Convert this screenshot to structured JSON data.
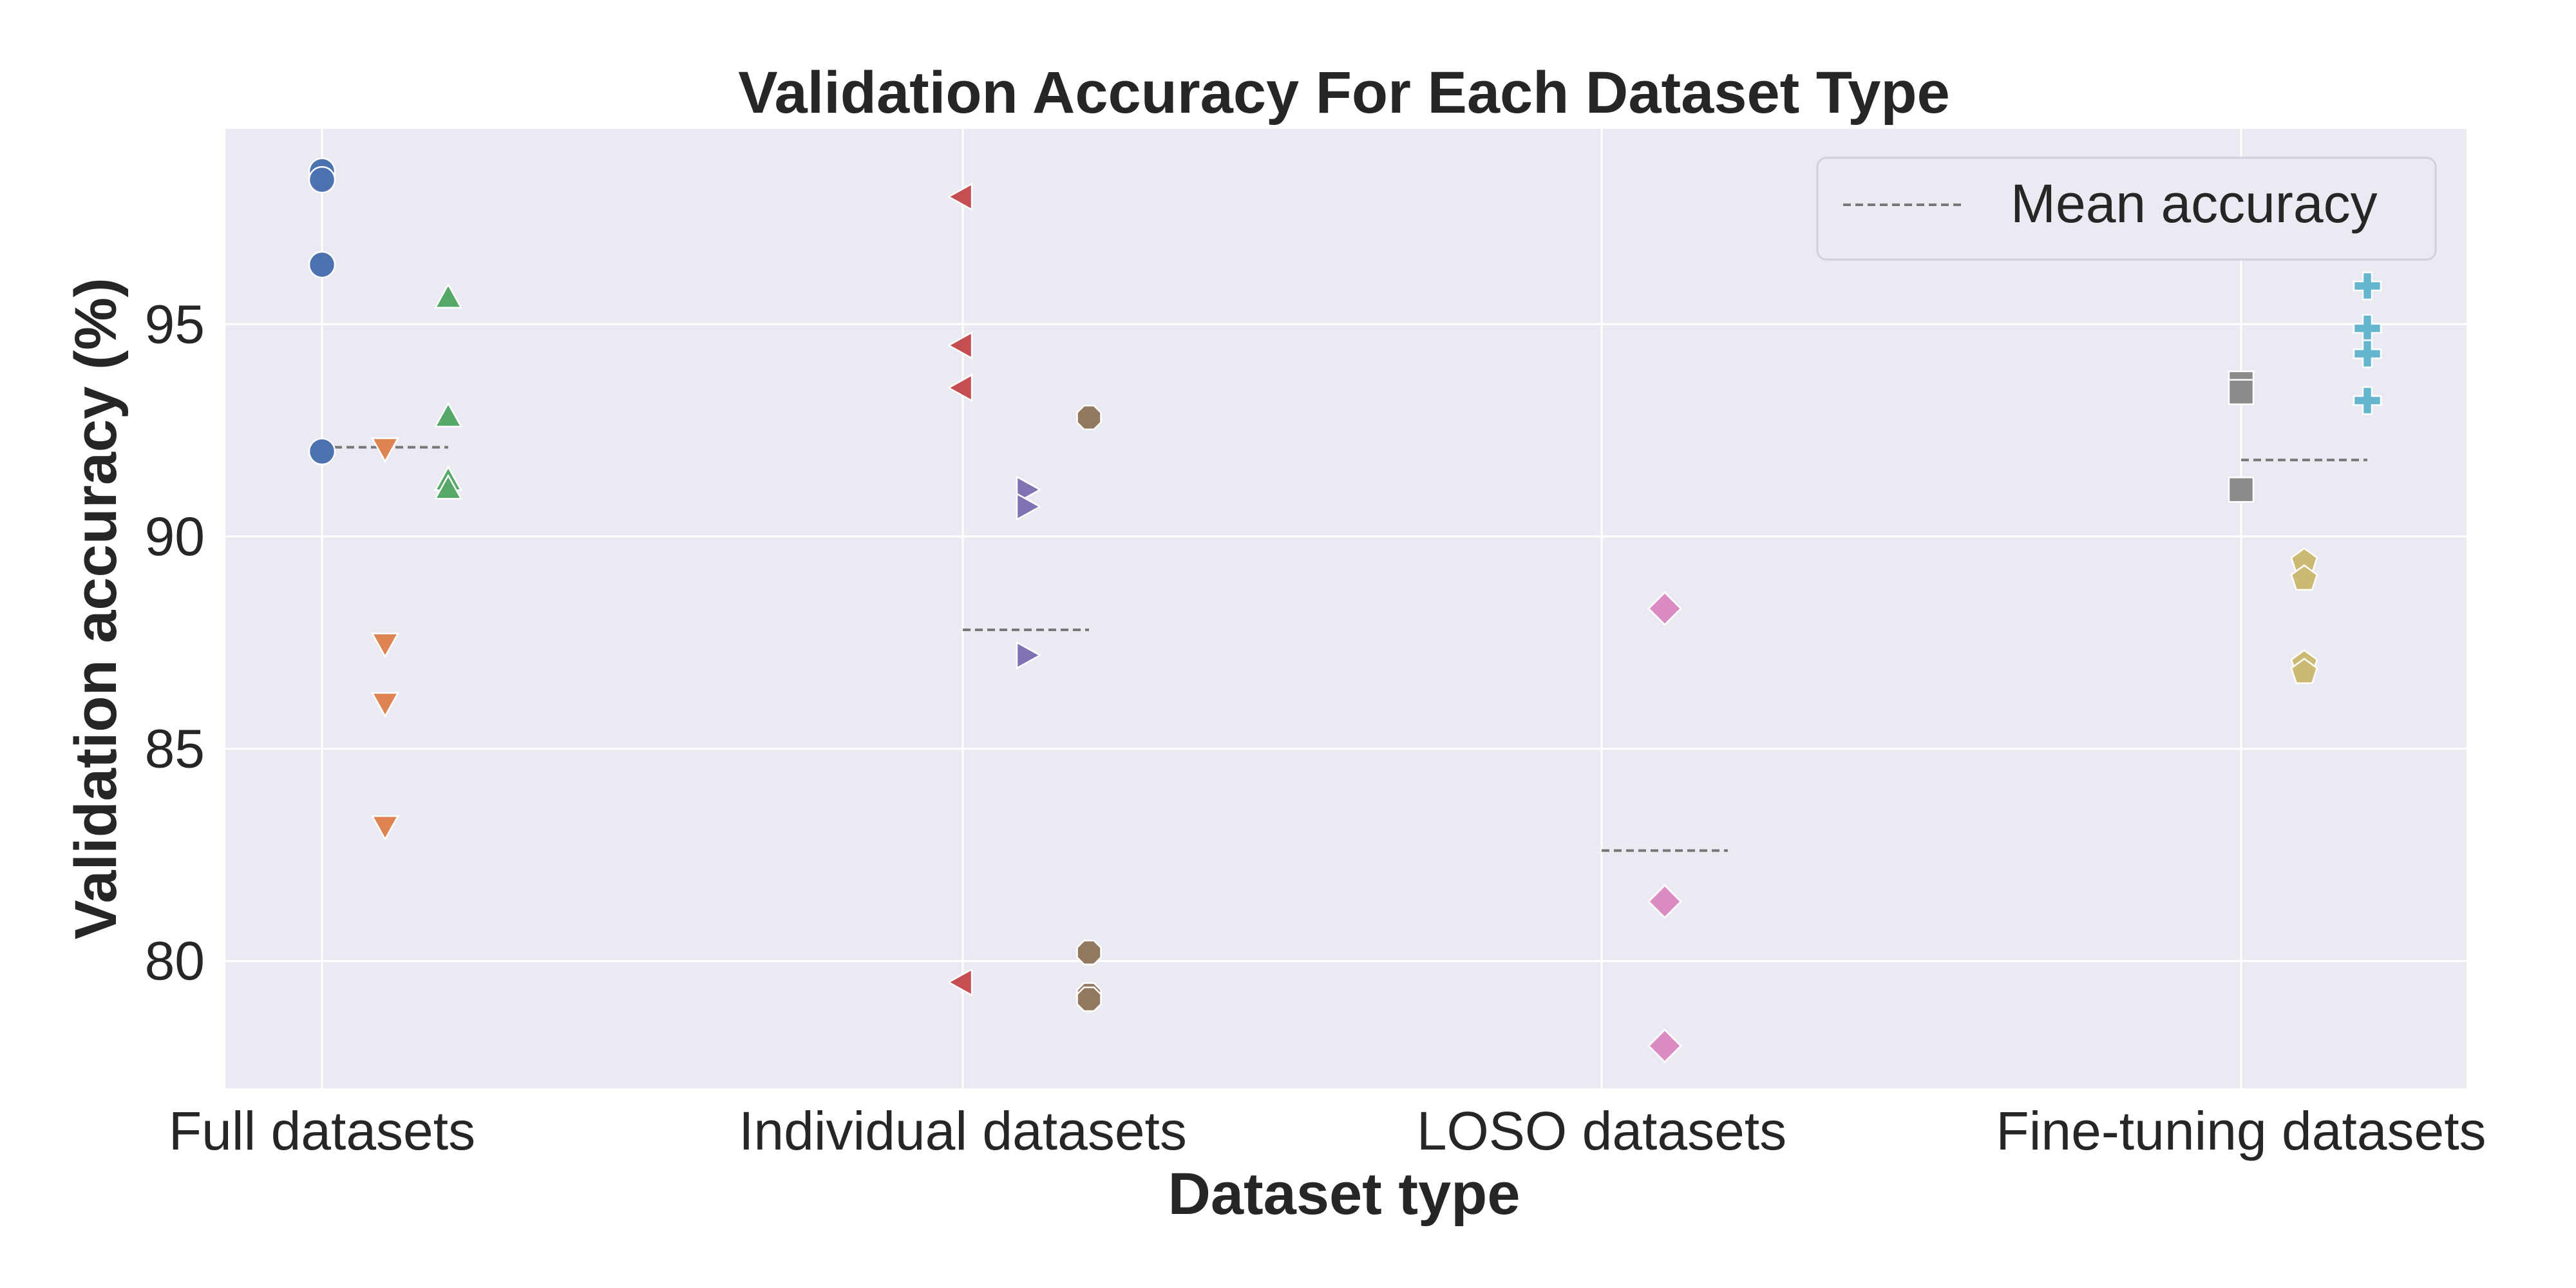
{
  "chart_data": {
    "type": "scatter",
    "title": "Validation Accuracy For Each Dataset Type",
    "xlabel": "Dataset type",
    "ylabel": "Validation accuracy (%)",
    "categories": [
      "Full datasets",
      "Individual datasets",
      "LOSO datasets",
      "Fine-tuning datasets"
    ],
    "ylim": [
      77,
      99.6
    ],
    "yticks": [
      80,
      85,
      90,
      95
    ],
    "grid": true,
    "legend": {
      "placement": "top-right",
      "entries": [
        "Mean accuracy"
      ]
    },
    "series": [
      {
        "category": "Full datasets",
        "offset": 0,
        "marker": "circle",
        "color": "#4c72b0",
        "values": [
          98.6,
          98.4,
          96.4,
          92.0
        ]
      },
      {
        "category": "Full datasets",
        "offset": 1,
        "marker": "triangle-down",
        "color": "#dd8452",
        "values": [
          92.1,
          87.5,
          86.1,
          83.2
        ]
      },
      {
        "category": "Full datasets",
        "offset": 2,
        "marker": "triangle-up",
        "color": "#55a868",
        "values": [
          95.6,
          92.8,
          91.3,
          91.1
        ]
      },
      {
        "category": "Individual datasets",
        "offset": 0,
        "marker": "triangle-left",
        "color": "#c44e52",
        "values": [
          98.0,
          94.5,
          93.5,
          79.5
        ]
      },
      {
        "category": "Individual datasets",
        "offset": 1,
        "marker": "triangle-right",
        "color": "#8172b3",
        "values": [
          91.1,
          90.7,
          87.2
        ]
      },
      {
        "category": "Individual datasets",
        "offset": 2,
        "marker": "octagon",
        "color": "#937860",
        "values": [
          92.8,
          80.2,
          79.2,
          79.1
        ]
      },
      {
        "category": "LOSO datasets",
        "offset": 1,
        "marker": "diamond",
        "color": "#da8bc3",
        "values": [
          88.3,
          81.4,
          78.0
        ]
      },
      {
        "category": "Fine-tuning datasets",
        "offset": 0,
        "marker": "square",
        "color": "#8c8c8c",
        "values": [
          93.6,
          93.4,
          91.1
        ]
      },
      {
        "category": "Fine-tuning datasets",
        "offset": 1,
        "marker": "pentagon",
        "color": "#ccb974",
        "values": [
          89.4,
          89.0,
          87.0,
          86.8
        ]
      },
      {
        "category": "Fine-tuning datasets",
        "offset": 2,
        "marker": "plus",
        "color": "#64b5cd",
        "values": [
          95.9,
          94.9,
          94.3,
          93.2
        ]
      }
    ],
    "means": [
      {
        "category": "Full datasets",
        "value": 92.1
      },
      {
        "category": "Individual datasets",
        "value": 87.8
      },
      {
        "category": "LOSO datasets",
        "value": 82.6
      },
      {
        "category": "Fine-tuning datasets",
        "value": 91.8
      }
    ],
    "colors": {
      "background": "#eaeaf2",
      "grid": "#ffffff",
      "mean_line": "#777777"
    }
  }
}
